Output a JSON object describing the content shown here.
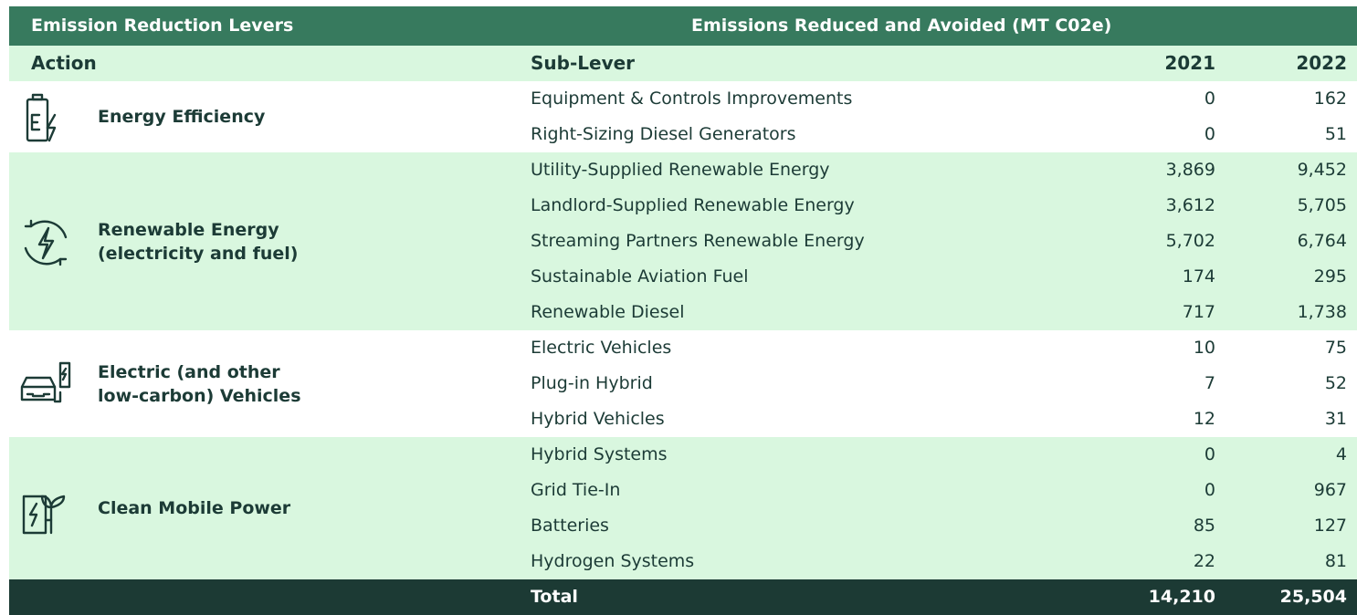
{
  "header": {
    "title_left": "Emission Reduction Levers",
    "title_right": "Emissions Reduced and Avoided (MT C02e)"
  },
  "columns": [
    "Action",
    "Sub-Lever",
    "2021",
    "2022"
  ],
  "groups": [
    {
      "action_lines": [
        "Energy Efficiency"
      ],
      "rows": [
        [
          "Equipment & Controls Improvements",
          "0",
          "162"
        ],
        [
          "Right-Sizing Diesel Generators",
          "0",
          "51"
        ]
      ]
    },
    {
      "action_lines": [
        "Renewable Energy",
        "(electricity and fuel)"
      ],
      "rows": [
        [
          "Utility-Supplied Renewable Energy",
          "3,869",
          "9,452"
        ],
        [
          "Landlord-Supplied Renewable Energy",
          "3,612",
          "5,705"
        ],
        [
          "Streaming Partners Renewable Energy",
          "5,702",
          "6,764"
        ],
        [
          "Sustainable Aviation Fuel",
          "174",
          "295"
        ],
        [
          "Renewable Diesel",
          "717",
          "1,738"
        ]
      ]
    },
    {
      "action_lines": [
        "Electric (and other",
        "low-carbon) Vehicles"
      ],
      "rows": [
        [
          "Electric Vehicles",
          "10",
          "75"
        ],
        [
          "Plug-in Hybrid",
          "7",
          "52"
        ],
        [
          "Hybrid Vehicles",
          "12",
          "31"
        ]
      ]
    },
    {
      "action_lines": [
        "Clean Mobile Power"
      ],
      "rows": [
        [
          "Hybrid Systems",
          "0",
          "4"
        ],
        [
          "Grid Tie-In",
          "0",
          "967"
        ],
        [
          "Batteries",
          "85",
          "127"
        ],
        [
          "Hydrogen Systems",
          "22",
          "81"
        ]
      ]
    }
  ],
  "total": {
    "label": "Total",
    "values": [
      "14,210",
      "25,504"
    ]
  }
}
